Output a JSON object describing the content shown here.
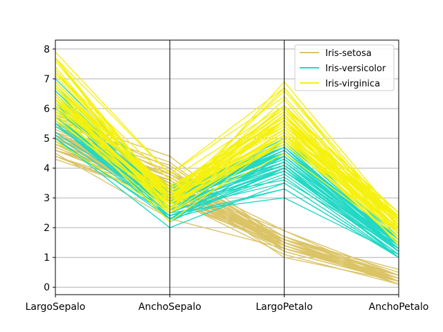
{
  "chart_data": {
    "type": "line",
    "title": "",
    "xlabel": "",
    "ylabel": "",
    "chart_kind": "parallel-coordinates",
    "categories": [
      "LargoSepalo",
      "AnchoSepalo",
      "LargoPetalo",
      "AnchoPetalo"
    ],
    "ylim": [
      -0.25,
      8.3
    ],
    "yticks": [
      0,
      1,
      2,
      3,
      4,
      5,
      6,
      7,
      8
    ],
    "grid": true,
    "legend_position": "top-right",
    "series": [
      {
        "name": "Iris-setosa",
        "color": "#dbc467",
        "lines": [
          [
            5.1,
            3.5,
            1.4,
            0.2
          ],
          [
            4.9,
            3.0,
            1.4,
            0.2
          ],
          [
            4.7,
            3.2,
            1.3,
            0.2
          ],
          [
            4.6,
            3.1,
            1.5,
            0.2
          ],
          [
            5.0,
            3.6,
            1.4,
            0.2
          ],
          [
            5.4,
            3.9,
            1.7,
            0.4
          ],
          [
            4.6,
            3.4,
            1.4,
            0.3
          ],
          [
            5.0,
            3.4,
            1.5,
            0.2
          ],
          [
            4.4,
            2.9,
            1.4,
            0.2
          ],
          [
            4.9,
            3.1,
            1.5,
            0.1
          ],
          [
            5.4,
            3.7,
            1.5,
            0.2
          ],
          [
            4.8,
            3.4,
            1.6,
            0.2
          ],
          [
            4.8,
            3.0,
            1.4,
            0.1
          ],
          [
            4.3,
            3.0,
            1.1,
            0.1
          ],
          [
            5.8,
            4.0,
            1.2,
            0.2
          ],
          [
            5.7,
            4.4,
            1.5,
            0.4
          ],
          [
            5.4,
            3.9,
            1.3,
            0.4
          ],
          [
            5.1,
            3.5,
            1.4,
            0.3
          ],
          [
            5.7,
            3.8,
            1.7,
            0.3
          ],
          [
            5.1,
            3.8,
            1.5,
            0.3
          ],
          [
            5.4,
            3.4,
            1.7,
            0.2
          ],
          [
            5.1,
            3.7,
            1.5,
            0.4
          ],
          [
            4.6,
            3.6,
            1.0,
            0.2
          ],
          [
            5.1,
            3.3,
            1.7,
            0.5
          ],
          [
            4.8,
            3.4,
            1.9,
            0.2
          ],
          [
            5.0,
            3.0,
            1.6,
            0.2
          ],
          [
            5.0,
            3.4,
            1.6,
            0.4
          ],
          [
            5.2,
            3.5,
            1.5,
            0.2
          ],
          [
            5.2,
            3.4,
            1.4,
            0.2
          ],
          [
            4.7,
            3.2,
            1.6,
            0.2
          ],
          [
            4.8,
            3.1,
            1.6,
            0.2
          ],
          [
            5.4,
            3.4,
            1.5,
            0.4
          ],
          [
            5.2,
            4.1,
            1.5,
            0.1
          ],
          [
            5.5,
            4.2,
            1.4,
            0.2
          ],
          [
            4.9,
            3.1,
            1.5,
            0.1
          ],
          [
            5.0,
            3.2,
            1.2,
            0.2
          ],
          [
            5.5,
            3.5,
            1.3,
            0.2
          ],
          [
            4.9,
            3.1,
            1.5,
            0.1
          ],
          [
            4.4,
            3.0,
            1.3,
            0.2
          ],
          [
            5.1,
            3.4,
            1.5,
            0.2
          ],
          [
            5.0,
            3.5,
            1.3,
            0.3
          ],
          [
            4.5,
            2.3,
            1.3,
            0.3
          ],
          [
            4.4,
            3.2,
            1.3,
            0.2
          ],
          [
            5.0,
            3.5,
            1.6,
            0.6
          ],
          [
            5.1,
            3.8,
            1.9,
            0.4
          ],
          [
            4.8,
            3.0,
            1.4,
            0.3
          ],
          [
            5.1,
            3.8,
            1.6,
            0.2
          ],
          [
            4.6,
            3.2,
            1.4,
            0.2
          ],
          [
            5.3,
            3.7,
            1.5,
            0.2
          ],
          [
            5.0,
            3.3,
            1.4,
            0.2
          ]
        ]
      },
      {
        "name": "Iris-versicolor",
        "color": "#22d8c4",
        "lines": [
          [
            7.0,
            3.2,
            4.7,
            1.4
          ],
          [
            6.4,
            3.2,
            4.5,
            1.5
          ],
          [
            6.9,
            3.1,
            4.9,
            1.5
          ],
          [
            5.5,
            2.3,
            4.0,
            1.3
          ],
          [
            6.5,
            2.8,
            4.6,
            1.5
          ],
          [
            5.7,
            2.8,
            4.5,
            1.3
          ],
          [
            6.3,
            3.3,
            4.7,
            1.6
          ],
          [
            4.9,
            2.4,
            3.3,
            1.0
          ],
          [
            6.6,
            2.9,
            4.6,
            1.3
          ],
          [
            5.2,
            2.7,
            3.9,
            1.4
          ],
          [
            5.0,
            2.0,
            3.5,
            1.0
          ],
          [
            5.9,
            3.0,
            4.2,
            1.5
          ],
          [
            6.0,
            2.2,
            4.0,
            1.0
          ],
          [
            6.1,
            2.9,
            4.7,
            1.4
          ],
          [
            5.6,
            2.9,
            3.6,
            1.3
          ],
          [
            6.7,
            3.1,
            4.4,
            1.4
          ],
          [
            5.6,
            3.0,
            4.5,
            1.5
          ],
          [
            5.8,
            2.7,
            4.1,
            1.0
          ],
          [
            6.2,
            2.2,
            4.5,
            1.5
          ],
          [
            5.6,
            2.5,
            3.9,
            1.1
          ],
          [
            5.9,
            3.2,
            4.8,
            1.8
          ],
          [
            6.1,
            2.8,
            4.0,
            1.3
          ],
          [
            6.3,
            2.5,
            4.9,
            1.5
          ],
          [
            6.1,
            2.8,
            4.7,
            1.2
          ],
          [
            6.4,
            2.9,
            4.3,
            1.3
          ],
          [
            6.6,
            3.0,
            4.4,
            1.4
          ],
          [
            6.8,
            2.8,
            4.8,
            1.4
          ],
          [
            6.7,
            3.0,
            5.0,
            1.7
          ],
          [
            6.0,
            2.9,
            4.5,
            1.5
          ],
          [
            5.7,
            2.6,
            3.5,
            1.0
          ],
          [
            5.5,
            2.4,
            3.8,
            1.1
          ],
          [
            5.5,
            2.4,
            3.7,
            1.0
          ],
          [
            5.8,
            2.7,
            3.9,
            1.2
          ],
          [
            6.0,
            2.7,
            5.1,
            1.6
          ],
          [
            5.4,
            3.0,
            4.5,
            1.5
          ],
          [
            6.0,
            3.4,
            4.5,
            1.6
          ],
          [
            6.7,
            3.1,
            4.7,
            1.5
          ],
          [
            6.3,
            2.3,
            4.4,
            1.3
          ],
          [
            5.6,
            3.0,
            4.1,
            1.3
          ],
          [
            5.5,
            2.5,
            4.0,
            1.3
          ],
          [
            5.5,
            2.6,
            4.4,
            1.2
          ],
          [
            6.1,
            3.0,
            4.6,
            1.4
          ],
          [
            5.8,
            2.6,
            4.0,
            1.2
          ],
          [
            5.0,
            2.3,
            3.3,
            1.0
          ],
          [
            5.6,
            2.7,
            4.2,
            1.3
          ],
          [
            5.7,
            3.0,
            4.2,
            1.2
          ],
          [
            5.7,
            2.9,
            4.2,
            1.3
          ],
          [
            6.2,
            2.9,
            4.3,
            1.3
          ],
          [
            5.1,
            2.5,
            3.0,
            1.1
          ],
          [
            5.7,
            2.8,
            4.1,
            1.3
          ]
        ]
      },
      {
        "name": "Iris-virginica",
        "color": "#f5f10f",
        "lines": [
          [
            6.3,
            3.3,
            6.0,
            2.5
          ],
          [
            5.8,
            2.7,
            5.1,
            1.9
          ],
          [
            7.1,
            3.0,
            5.9,
            2.1
          ],
          [
            6.3,
            2.9,
            5.6,
            1.8
          ],
          [
            6.5,
            3.0,
            5.8,
            2.2
          ],
          [
            7.6,
            3.0,
            6.6,
            2.1
          ],
          [
            4.9,
            2.5,
            4.5,
            1.7
          ],
          [
            7.3,
            2.9,
            6.3,
            1.8
          ],
          [
            6.7,
            2.5,
            5.8,
            1.8
          ],
          [
            7.2,
            3.6,
            6.1,
            2.5
          ],
          [
            6.5,
            3.2,
            5.1,
            2.0
          ],
          [
            6.4,
            2.7,
            5.3,
            1.9
          ],
          [
            6.8,
            3.0,
            5.5,
            2.1
          ],
          [
            5.7,
            2.5,
            5.0,
            2.0
          ],
          [
            5.8,
            2.8,
            5.1,
            2.4
          ],
          [
            6.4,
            3.2,
            5.3,
            2.3
          ],
          [
            6.5,
            3.0,
            5.5,
            1.8
          ],
          [
            7.7,
            3.8,
            6.7,
            2.2
          ],
          [
            7.7,
            2.6,
            6.9,
            2.3
          ],
          [
            6.0,
            2.2,
            5.0,
            1.5
          ],
          [
            6.9,
            3.2,
            5.7,
            2.3
          ],
          [
            5.6,
            2.8,
            4.9,
            2.0
          ],
          [
            7.7,
            2.8,
            6.7,
            2.0
          ],
          [
            6.3,
            2.7,
            4.9,
            1.8
          ],
          [
            6.7,
            3.3,
            5.7,
            2.1
          ],
          [
            7.2,
            3.2,
            6.0,
            1.8
          ],
          [
            6.2,
            2.8,
            4.8,
            1.8
          ],
          [
            6.1,
            3.0,
            4.9,
            1.8
          ],
          [
            6.4,
            2.8,
            5.6,
            2.1
          ],
          [
            7.2,
            3.0,
            5.8,
            1.6
          ],
          [
            7.4,
            2.8,
            6.1,
            1.9
          ],
          [
            7.9,
            3.8,
            6.4,
            2.0
          ],
          [
            6.4,
            2.8,
            5.6,
            2.2
          ],
          [
            6.3,
            2.8,
            5.1,
            1.5
          ],
          [
            6.1,
            2.6,
            5.6,
            1.4
          ],
          [
            7.7,
            3.0,
            6.1,
            2.3
          ],
          [
            6.3,
            3.4,
            5.6,
            2.4
          ],
          [
            6.4,
            3.1,
            5.5,
            1.8
          ],
          [
            6.0,
            3.0,
            4.8,
            1.8
          ],
          [
            6.9,
            3.1,
            5.4,
            2.1
          ],
          [
            6.7,
            3.1,
            5.6,
            2.4
          ],
          [
            6.9,
            3.1,
            5.1,
            2.3
          ],
          [
            5.8,
            2.7,
            5.1,
            1.9
          ],
          [
            6.8,
            3.2,
            5.9,
            2.3
          ],
          [
            6.7,
            3.3,
            5.7,
            2.5
          ],
          [
            6.7,
            3.0,
            5.2,
            2.3
          ],
          [
            6.3,
            2.5,
            5.0,
            1.9
          ],
          [
            6.5,
            3.0,
            5.2,
            2.0
          ],
          [
            6.2,
            3.4,
            5.4,
            2.3
          ],
          [
            5.9,
            3.0,
            5.1,
            1.8
          ]
        ]
      }
    ]
  }
}
